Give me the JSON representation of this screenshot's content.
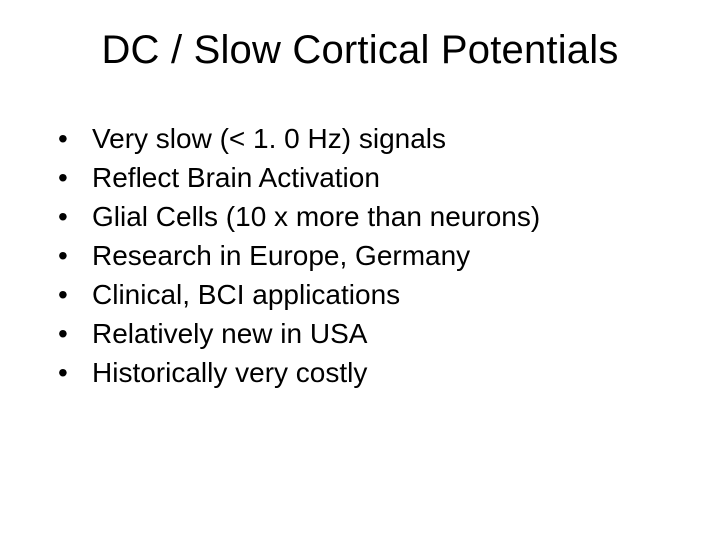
{
  "slide": {
    "title": "DC / Slow Cortical Potentials",
    "title_fontsize": 40,
    "title_color": "#000000",
    "background_color": "#ffffff",
    "body_fontsize": 28,
    "body_color": "#000000",
    "font_family": "Arial",
    "bullet_char": "•",
    "bullets": [
      "Very slow (< 1. 0 Hz) signals",
      "Reflect Brain Activation",
      "Glial Cells (10 x more than neurons)",
      "Research in Europe, Germany",
      "Clinical, BCI applications",
      "Relatively new in USA",
      "Historically very costly"
    ]
  }
}
